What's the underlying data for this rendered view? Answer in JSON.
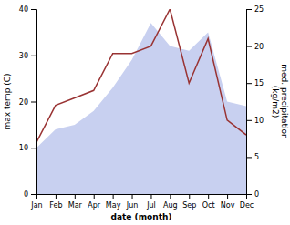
{
  "chart_data": {
    "type": "line",
    "categories": [
      "Jan",
      "Feb",
      "Mar",
      "Apr",
      "May",
      "Jun",
      "Jul",
      "Aug",
      "Sep",
      "Oct",
      "Nov",
      "Dec"
    ],
    "series": [
      {
        "type": "area",
        "color": "#c8d0f0",
        "values": [
          10,
          14,
          15,
          18,
          23,
          29,
          37,
          32,
          31,
          35,
          20,
          19
        ]
      },
      {
        "type": "line",
        "color": "#993333",
        "axis": "y2",
        "values": [
          7,
          12,
          13,
          14,
          19,
          19,
          20,
          25,
          15,
          21,
          10,
          8
        ]
      }
    ],
    "xlabel": "date (month)",
    "ylabel": "max temp (C)",
    "y2label": "med. precipitation\n(kg/m2)",
    "ylim": [
      0,
      40
    ],
    "yticks": [
      0,
      10,
      20,
      30,
      40
    ],
    "y2lim": [
      0,
      25
    ],
    "y2ticks": [
      0,
      5,
      10,
      15,
      20,
      25
    ]
  }
}
